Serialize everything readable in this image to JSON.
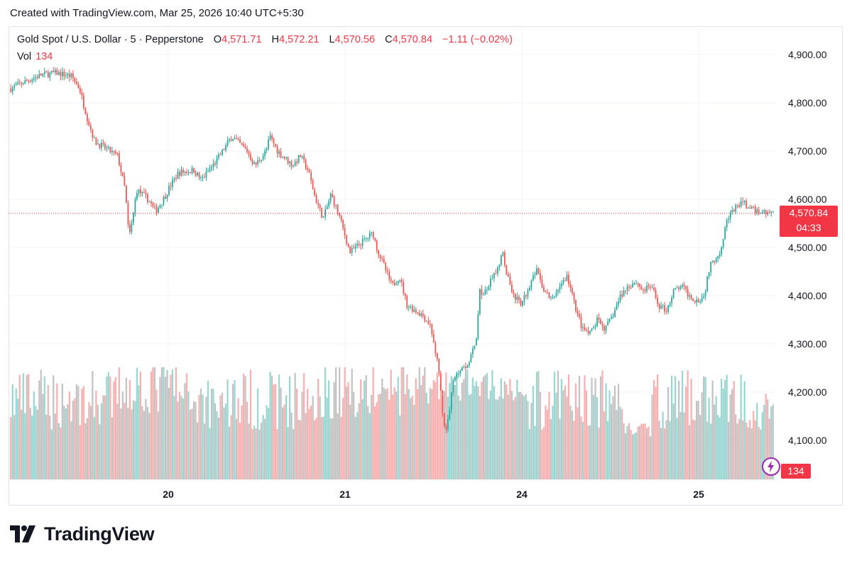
{
  "header": {
    "created_text": "Created with TradingView.com, Mar 25, 2026 10:40 UTC+5:30"
  },
  "legend": {
    "symbol": "Gold Spot / U.S. Dollar · 5 · Pepperstone",
    "open_label": "O",
    "open": "4,571.71",
    "high_label": "H",
    "high": "4,572.21",
    "low_label": "L",
    "low": "4,570.56",
    "close_label": "C",
    "close": "4,570.84",
    "change": "−1.11 (−0.02%)",
    "vol_label": "Vol",
    "vol": "134"
  },
  "price_tag": {
    "price": "4,570.84",
    "countdown": "04:33"
  },
  "volume_tag": "134",
  "footer": {
    "brand": "TradingView"
  },
  "colors": {
    "up": "#26a69a",
    "down": "#ef5350",
    "vol_up": "#8fd3cd",
    "vol_down": "#f7a9a7",
    "vol_neutral": "#bcbcbc",
    "price_line": "#f23645",
    "accent": "#9c27b0"
  },
  "chart_data": {
    "type": "candlestick",
    "timeframe": "5",
    "y_axis": {
      "ticks": [
        "4,100.00",
        "4,200.00",
        "4,300.00",
        "4,400.00",
        "4,500.00",
        "4,600.00",
        "4,700.00",
        "4,800.00",
        "4,900.00"
      ],
      "ylim": [
        4050,
        4950
      ]
    },
    "x_axis": {
      "ticks": [
        "20",
        "21",
        "24",
        "25"
      ]
    },
    "last_price": 4570.84,
    "last_volume": 134,
    "grid": true,
    "price_path": [
      {
        "x": 0.0,
        "y": 4830
      },
      {
        "x": 0.02,
        "y": 4845
      },
      {
        "x": 0.04,
        "y": 4858
      },
      {
        "x": 0.06,
        "y": 4862
      },
      {
        "x": 0.08,
        "y": 4855
      },
      {
        "x": 0.09,
        "y": 4830
      },
      {
        "x": 0.1,
        "y": 4770
      },
      {
        "x": 0.11,
        "y": 4720
      },
      {
        "x": 0.12,
        "y": 4710
      },
      {
        "x": 0.14,
        "y": 4690
      },
      {
        "x": 0.15,
        "y": 4620
      },
      {
        "x": 0.155,
        "y": 4520
      },
      {
        "x": 0.16,
        "y": 4560
      },
      {
        "x": 0.165,
        "y": 4620
      },
      {
        "x": 0.18,
        "y": 4600
      },
      {
        "x": 0.19,
        "y": 4575
      },
      {
        "x": 0.2,
        "y": 4600
      },
      {
        "x": 0.21,
        "y": 4630
      },
      {
        "x": 0.22,
        "y": 4655
      },
      {
        "x": 0.24,
        "y": 4660
      },
      {
        "x": 0.25,
        "y": 4640
      },
      {
        "x": 0.27,
        "y": 4680
      },
      {
        "x": 0.29,
        "y": 4730
      },
      {
        "x": 0.31,
        "y": 4700
      },
      {
        "x": 0.32,
        "y": 4670
      },
      {
        "x": 0.335,
        "y": 4700
      },
      {
        "x": 0.34,
        "y": 4730
      },
      {
        "x": 0.35,
        "y": 4700
      },
      {
        "x": 0.37,
        "y": 4670
      },
      {
        "x": 0.38,
        "y": 4690
      },
      {
        "x": 0.39,
        "y": 4660
      },
      {
        "x": 0.4,
        "y": 4600
      },
      {
        "x": 0.41,
        "y": 4560
      },
      {
        "x": 0.42,
        "y": 4610
      },
      {
        "x": 0.43,
        "y": 4570
      },
      {
        "x": 0.445,
        "y": 4490
      },
      {
        "x": 0.46,
        "y": 4510
      },
      {
        "x": 0.475,
        "y": 4530
      },
      {
        "x": 0.48,
        "y": 4500
      },
      {
        "x": 0.49,
        "y": 4460
      },
      {
        "x": 0.5,
        "y": 4420
      },
      {
        "x": 0.51,
        "y": 4440
      },
      {
        "x": 0.52,
        "y": 4380
      },
      {
        "x": 0.53,
        "y": 4370
      },
      {
        "x": 0.54,
        "y": 4360
      },
      {
        "x": 0.55,
        "y": 4340
      },
      {
        "x": 0.56,
        "y": 4260
      },
      {
        "x": 0.57,
        "y": 4110
      },
      {
        "x": 0.575,
        "y": 4160
      },
      {
        "x": 0.58,
        "y": 4220
      },
      {
        "x": 0.59,
        "y": 4250
      },
      {
        "x": 0.6,
        "y": 4260
      },
      {
        "x": 0.61,
        "y": 4300
      },
      {
        "x": 0.615,
        "y": 4410
      },
      {
        "x": 0.62,
        "y": 4400
      },
      {
        "x": 0.63,
        "y": 4430
      },
      {
        "x": 0.64,
        "y": 4460
      },
      {
        "x": 0.645,
        "y": 4500
      },
      {
        "x": 0.65,
        "y": 4450
      },
      {
        "x": 0.66,
        "y": 4400
      },
      {
        "x": 0.67,
        "y": 4380
      },
      {
        "x": 0.68,
        "y": 4420
      },
      {
        "x": 0.69,
        "y": 4450
      },
      {
        "x": 0.7,
        "y": 4410
      },
      {
        "x": 0.71,
        "y": 4390
      },
      {
        "x": 0.72,
        "y": 4420
      },
      {
        "x": 0.73,
        "y": 4440
      },
      {
        "x": 0.74,
        "y": 4380
      },
      {
        "x": 0.75,
        "y": 4330
      },
      {
        "x": 0.76,
        "y": 4320
      },
      {
        "x": 0.77,
        "y": 4350
      },
      {
        "x": 0.78,
        "y": 4330
      },
      {
        "x": 0.79,
        "y": 4360
      },
      {
        "x": 0.8,
        "y": 4400
      },
      {
        "x": 0.81,
        "y": 4420
      },
      {
        "x": 0.82,
        "y": 4430
      },
      {
        "x": 0.83,
        "y": 4410
      },
      {
        "x": 0.84,
        "y": 4420
      },
      {
        "x": 0.85,
        "y": 4380
      },
      {
        "x": 0.86,
        "y": 4370
      },
      {
        "x": 0.87,
        "y": 4410
      },
      {
        "x": 0.88,
        "y": 4420
      },
      {
        "x": 0.89,
        "y": 4400
      },
      {
        "x": 0.9,
        "y": 4390
      },
      {
        "x": 0.91,
        "y": 4400
      },
      {
        "x": 0.915,
        "y": 4450
      },
      {
        "x": 0.92,
        "y": 4470
      },
      {
        "x": 0.93,
        "y": 4490
      },
      {
        "x": 0.94,
        "y": 4560
      },
      {
        "x": 0.95,
        "y": 4580
      },
      {
        "x": 0.96,
        "y": 4595
      },
      {
        "x": 0.97,
        "y": 4580
      },
      {
        "x": 0.98,
        "y": 4575
      },
      {
        "x": 1.0,
        "y": 4571
      }
    ]
  }
}
